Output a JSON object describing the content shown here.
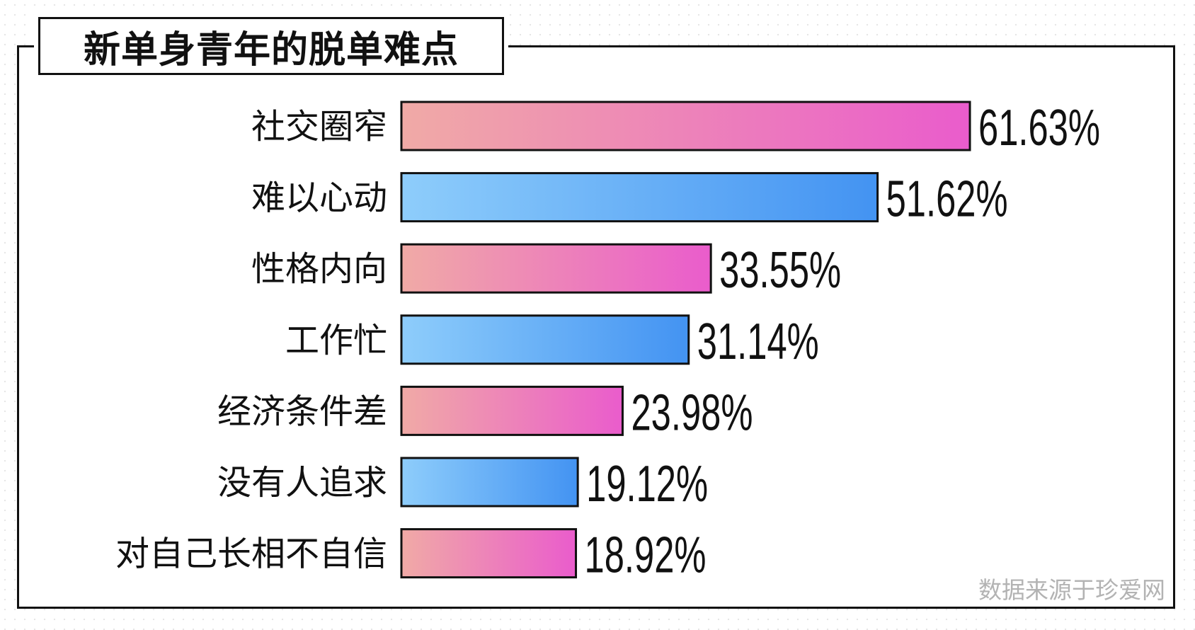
{
  "chart_data": {
    "type": "bar",
    "orientation": "horizontal",
    "title": "新单身青年的脱单难点",
    "categories": [
      "社交圈窄",
      "难以心动",
      "性格内向",
      "工作忙",
      "经济条件差",
      "没有人追求",
      "对自己长相不自信"
    ],
    "values": [
      61.63,
      51.62,
      33.55,
      31.14,
      23.98,
      19.12,
      18.92
    ],
    "value_labels": [
      "61.63%",
      "51.62%",
      "33.55%",
      "31.14%",
      "23.98%",
      "19.12%",
      "18.92%"
    ],
    "unit": "%",
    "xlim": [
      0,
      100
    ],
    "grid": false,
    "legend": "none",
    "colors": {
      "pink_start": "#f0aaa6",
      "pink_end": "#ea5ccc",
      "blue_start": "#8ecdfb",
      "blue_end": "#4393f2",
      "outline": "#111111",
      "text": "#111111"
    },
    "color_pattern": [
      "pink",
      "blue",
      "pink",
      "blue",
      "pink",
      "blue",
      "pink"
    ]
  },
  "source_note": "数据来源于珍爱网"
}
